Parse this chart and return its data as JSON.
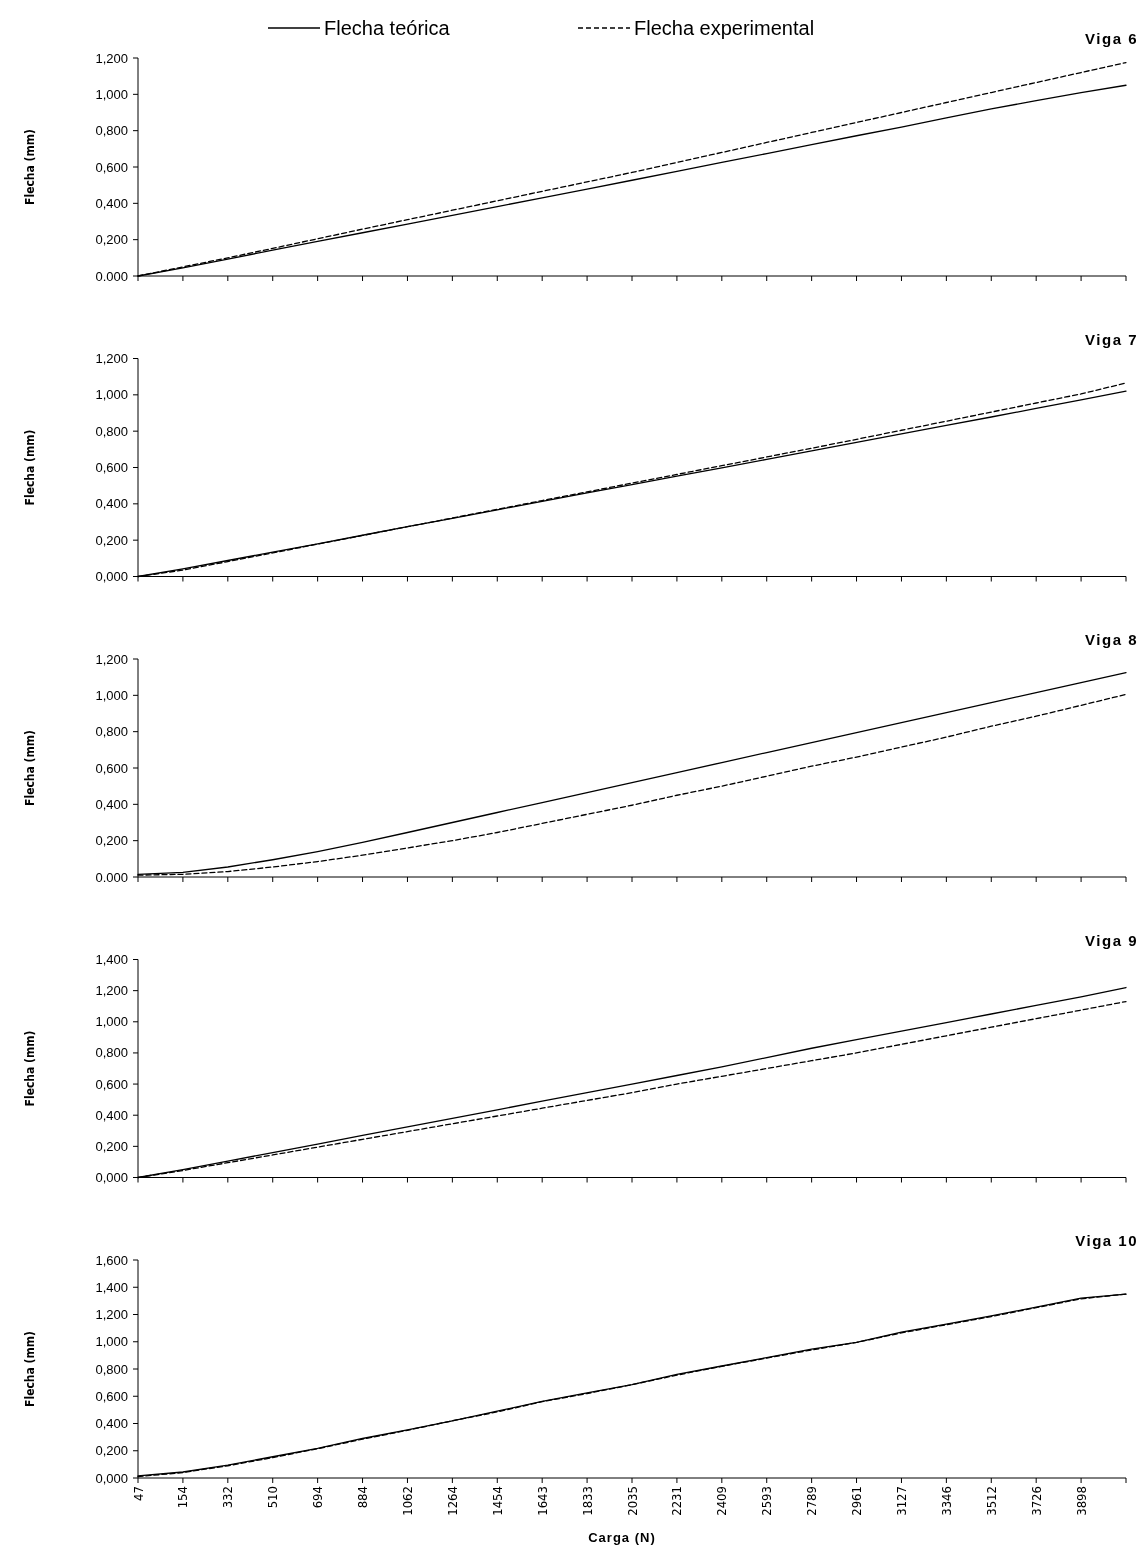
{
  "chart_data": [
    {
      "type": "line",
      "title": "Viga 6",
      "ylabel": "Flecha (mm)",
      "legend": "top",
      "tick_labels": "y",
      "categories": [
        "47",
        "154",
        "332",
        "510",
        "694",
        "884",
        "1062",
        "1264",
        "1454",
        "1643",
        "1833",
        "2035",
        "2231",
        "2409",
        "2593",
        "2789",
        "2961",
        "3127",
        "3346",
        "3512",
        "3726",
        "3898",
        null
      ],
      "ylim": [
        0,
        1.2
      ],
      "yticks": [
        {
          "value": 0,
          "label": "0.000"
        },
        {
          "value": 0.2,
          "label": "0,200"
        },
        {
          "value": 0.4,
          "label": "0,400"
        },
        {
          "value": 0.6,
          "label": "0,600"
        },
        {
          "value": 0.8,
          "label": "0,800"
        },
        {
          "value": 1,
          "label": "1,000"
        },
        {
          "value": 1.2,
          "label": "1,200"
        }
      ],
      "series": [
        {
          "name": "Flecha teórica",
          "color": "#000000",
          "line_style": "solid",
          "values": [
            0,
            0.045,
            0.093,
            0.142,
            0.19,
            0.238,
            0.286,
            0.334,
            0.382,
            0.43,
            0.478,
            0.527,
            0.576,
            0.625,
            0.674,
            0.723,
            0.772,
            0.82,
            0.87,
            0.92,
            0.965,
            1.01,
            1.05
          ]
        },
        {
          "name": "Flecha experimental",
          "color": "#000000",
          "line_style": "dashed",
          "values": [
            0,
            0.05,
            0.1,
            0.152,
            0.205,
            0.258,
            0.31,
            0.362,
            0.414,
            0.466,
            0.518,
            0.57,
            0.625,
            0.68,
            0.735,
            0.79,
            0.845,
            0.9,
            0.955,
            1.01,
            1.065,
            1.12,
            1.175
          ]
        }
      ]
    },
    {
      "type": "line",
      "title": "Viga 7",
      "ylabel": "Flecha (mm)",
      "tick_labels": "y",
      "categories": [
        "47",
        "154",
        "332",
        "510",
        "694",
        "884",
        "1062",
        "1264",
        "1454",
        "1643",
        "1833",
        "2035",
        "2231",
        "2409",
        "2593",
        "2789",
        "2961",
        "3127",
        "3346",
        "3512",
        "3726",
        "3898",
        null
      ],
      "ylim": [
        0,
        1.2
      ],
      "yticks": [
        {
          "value": 0,
          "label": "0,000"
        },
        {
          "value": 0.2,
          "label": "0,200"
        },
        {
          "value": 0.4,
          "label": "0,400"
        },
        {
          "value": 0.6,
          "label": "0,600"
        },
        {
          "value": 0.8,
          "label": "0,800"
        },
        {
          "value": 1,
          "label": "1,000"
        },
        {
          "value": 1.2,
          "label": "1,200"
        }
      ],
      "series": [
        {
          "color": "#000000",
          "line_style": "solid",
          "values": [
            0,
            0.042,
            0.088,
            0.134,
            0.18,
            0.227,
            0.274,
            0.32,
            0.367,
            0.414,
            0.46,
            0.506,
            0.552,
            0.598,
            0.645,
            0.692,
            0.738,
            0.785,
            0.832,
            0.878,
            0.925,
            0.972,
            1.02
          ]
        },
        {
          "color": "#000000",
          "line_style": "dashed",
          "values": [
            0,
            0.035,
            0.082,
            0.13,
            0.178,
            0.226,
            0.274,
            0.322,
            0.37,
            0.418,
            0.466,
            0.514,
            0.562,
            0.61,
            0.658,
            0.706,
            0.755,
            0.805,
            0.855,
            0.905,
            0.955,
            1.005,
            1.065
          ]
        }
      ]
    },
    {
      "type": "line",
      "title": "Viga 8",
      "ylabel": "Flecha (mm)",
      "tick_labels": "y",
      "categories": [
        "47",
        "154",
        "332",
        "510",
        "694",
        "884",
        "1062",
        "1264",
        "1454",
        "1643",
        "1833",
        "2035",
        "2231",
        "2409",
        "2593",
        "2789",
        "2961",
        "3127",
        "3346",
        "3512",
        "3726",
        "3898",
        null
      ],
      "ylim": [
        0,
        1.2
      ],
      "yticks": [
        {
          "value": 0,
          "label": "0.000"
        },
        {
          "value": 0.2,
          "label": "0,200"
        },
        {
          "value": 0.4,
          "label": "0,400"
        },
        {
          "value": 0.6,
          "label": "0,600"
        },
        {
          "value": 0.8,
          "label": "0,800"
        },
        {
          "value": 1,
          "label": "1,000"
        },
        {
          "value": 1.2,
          "label": "1,200"
        }
      ],
      "series": [
        {
          "color": "#000000",
          "line_style": "solid",
          "values": [
            0.015,
            0.025,
            0.055,
            0.095,
            0.14,
            0.19,
            0.245,
            0.3,
            0.355,
            0.41,
            0.465,
            0.52,
            0.575,
            0.63,
            0.685,
            0.74,
            0.795,
            0.85,
            0.905,
            0.96,
            1.015,
            1.07,
            1.125
          ]
        },
        {
          "color": "#000000",
          "line_style": "dashed",
          "values": [
            0.01,
            0.015,
            0.03,
            0.055,
            0.085,
            0.12,
            0.16,
            0.2,
            0.245,
            0.295,
            0.345,
            0.395,
            0.45,
            0.5,
            0.555,
            0.61,
            0.66,
            0.715,
            0.77,
            0.83,
            0.885,
            0.945,
            1.005
          ]
        }
      ]
    },
    {
      "type": "line",
      "title": "Viga 9",
      "ylabel": "Flecha (mm)",
      "tick_labels": "y",
      "categories": [
        "47",
        "154",
        "332",
        "510",
        "694",
        "884",
        "1062",
        "1264",
        "1454",
        "1643",
        "1833",
        "2035",
        "2231",
        "2409",
        "2593",
        "2789",
        "2961",
        "3127",
        "3346",
        "3512",
        "3726",
        "3898",
        null
      ],
      "ylim": [
        0,
        1.4
      ],
      "yticks": [
        {
          "value": 0,
          "label": "0,000"
        },
        {
          "value": 0.2,
          "label": "0,200"
        },
        {
          "value": 0.4,
          "label": "0,400"
        },
        {
          "value": 0.6,
          "label": "0,600"
        },
        {
          "value": 0.8,
          "label": "0,800"
        },
        {
          "value": 1,
          "label": "1,000"
        },
        {
          "value": 1.2,
          "label": "1,200"
        },
        {
          "value": 1.4,
          "label": "1,400"
        }
      ],
      "series": [
        {
          "color": "#000000",
          "line_style": "solid",
          "values": [
            0,
            0.05,
            0.105,
            0.16,
            0.215,
            0.27,
            0.325,
            0.38,
            0.435,
            0.49,
            0.545,
            0.6,
            0.655,
            0.71,
            0.77,
            0.83,
            0.885,
            0.94,
            0.995,
            1.05,
            1.105,
            1.16,
            1.22
          ]
        },
        {
          "color": "#000000",
          "line_style": "dashed",
          "values": [
            0,
            0.045,
            0.095,
            0.145,
            0.195,
            0.245,
            0.295,
            0.345,
            0.395,
            0.445,
            0.495,
            0.545,
            0.6,
            0.65,
            0.7,
            0.75,
            0.8,
            0.855,
            0.91,
            0.965,
            1.02,
            1.075,
            1.13
          ]
        }
      ]
    },
    {
      "type": "line",
      "title": "Viga 10",
      "ylabel": "Flecha (mm)",
      "xlabel": "Carga (N)",
      "categories": [
        "47",
        "154",
        "332",
        "510",
        "694",
        "884",
        "1062",
        "1264",
        "1454",
        "1643",
        "1833",
        "2035",
        "2231",
        "2409",
        "2593",
        "2789",
        "2961",
        "3127",
        "3346",
        "3512",
        "3726",
        "3898",
        null
      ],
      "ylim": [
        0,
        1.6
      ],
      "yticks": [
        {
          "value": 0,
          "label": "0,000"
        },
        {
          "value": 0.2,
          "label": "0,200"
        },
        {
          "value": 0.4,
          "label": "0,400"
        },
        {
          "value": 0.6,
          "label": "0,600"
        },
        {
          "value": 0.8,
          "label": "0,800"
        },
        {
          "value": 1,
          "label": "1,000"
        },
        {
          "value": 1.2,
          "label": "1,200"
        },
        {
          "value": 1.4,
          "label": "1,400"
        },
        {
          "value": 1.6,
          "label": "1,600"
        }
      ],
      "series": [
        {
          "color": "#000000",
          "line_style": "solid",
          "values": [
            0.015,
            0.044,
            0.094,
            0.156,
            0.217,
            0.29,
            0.353,
            0.42,
            0.49,
            0.563,
            0.625,
            0.686,
            0.76,
            0.822,
            0.884,
            0.946,
            0.995,
            1.07,
            1.13,
            1.19,
            1.254,
            1.32,
            1.35
          ]
        },
        {
          "color": "#000000",
          "line_style": "dashed",
          "values": [
            0.01,
            0.04,
            0.09,
            0.15,
            0.215,
            0.285,
            0.35,
            0.42,
            0.485,
            0.56,
            0.62,
            0.685,
            0.755,
            0.82,
            0.88,
            0.94,
            0.995,
            1.065,
            1.125,
            1.185,
            1.25,
            1.315,
            1.35
          ]
        }
      ]
    }
  ]
}
